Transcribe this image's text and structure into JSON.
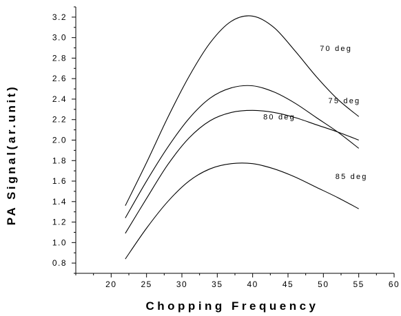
{
  "chart_data": {
    "type": "line",
    "xlabel": "Chopping Frequency",
    "ylabel": "PA Signal(ar.unit)",
    "xlim": [
      15,
      60
    ],
    "ylim": [
      0.7,
      3.3
    ],
    "x_major_ticks": [
      20,
      25,
      30,
      35,
      40,
      45,
      50,
      55,
      60
    ],
    "x_minor_step": 2.5,
    "y_major_ticks": [
      0.8,
      1.0,
      1.2,
      1.4,
      1.6,
      1.8,
      2.0,
      2.2,
      2.4,
      2.6,
      2.8,
      3.0,
      3.2
    ],
    "y_minor_step": 0.1,
    "x_tick_labels": [
      "20",
      "25",
      "30",
      "35",
      "40",
      "45",
      "50",
      "55",
      "60"
    ],
    "y_tick_labels": [
      "0.8",
      "1.0",
      "1.2",
      "1.4",
      "1.6",
      "1.8",
      "2.0",
      "2.2",
      "2.4",
      "2.6",
      "2.8",
      "3.0",
      "3.2"
    ],
    "grid": false,
    "series": [
      {
        "name": "70 deg",
        "x": [
          22,
          25,
          28,
          31,
          34,
          37,
          40,
          43,
          46,
          49,
          52,
          55
        ],
        "y": [
          1.36,
          1.78,
          2.22,
          2.62,
          2.95,
          3.16,
          3.21,
          3.1,
          2.87,
          2.62,
          2.4,
          2.23
        ],
        "label_at": [
          49.5,
          2.87
        ]
      },
      {
        "name": "75 deg",
        "x": [
          22,
          25,
          28,
          31,
          34,
          37,
          40,
          43,
          46,
          49,
          52,
          55
        ],
        "y": [
          1.24,
          1.6,
          1.93,
          2.21,
          2.41,
          2.51,
          2.53,
          2.47,
          2.36,
          2.22,
          2.08,
          1.92
        ],
        "label_at": [
          50.7,
          2.36
        ]
      },
      {
        "name": "80 deg",
        "x": [
          22,
          25,
          28,
          31,
          34,
          37,
          40,
          43,
          46,
          49,
          52,
          55
        ],
        "y": [
          1.09,
          1.43,
          1.76,
          2.02,
          2.19,
          2.27,
          2.29,
          2.27,
          2.22,
          2.15,
          2.08,
          2.0
        ],
        "label_at": [
          41.5,
          2.2
        ]
      },
      {
        "name": "85 deg",
        "x": [
          22,
          25,
          28,
          31,
          34,
          37,
          40,
          43,
          46,
          49,
          52,
          55
        ],
        "y": [
          0.84,
          1.14,
          1.4,
          1.6,
          1.72,
          1.77,
          1.77,
          1.72,
          1.64,
          1.54,
          1.44,
          1.33
        ],
        "label_at": [
          51.7,
          1.62
        ]
      }
    ]
  }
}
